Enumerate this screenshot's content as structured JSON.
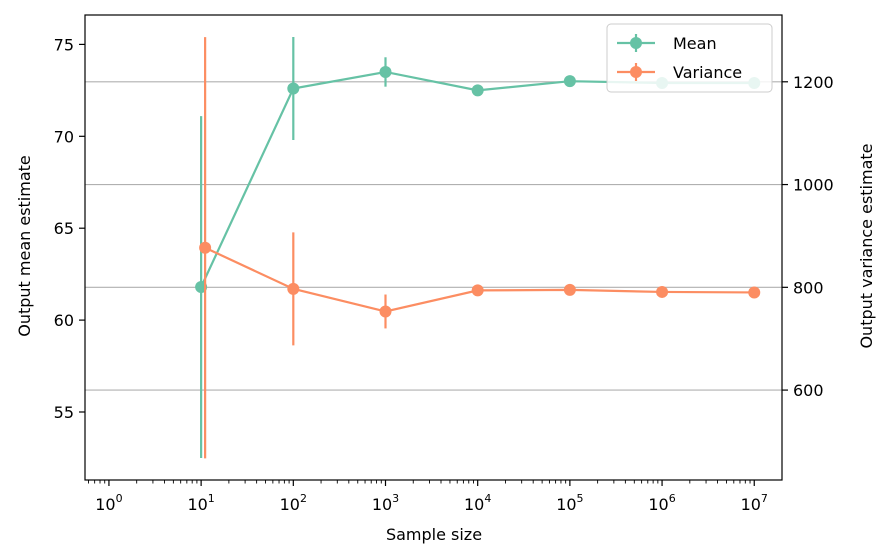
{
  "chart_data": {
    "type": "line",
    "xlabel": "Sample size",
    "ylabel_left": "Output mean estimate",
    "ylabel_right": "Output variance estimate",
    "x_scale": "log",
    "xlim": [
      0.55,
      20000000
    ],
    "ylim_left": [
      51.3,
      76.6
    ],
    "ylim_right": [
      425,
      1330
    ],
    "x_ticks": [
      {
        "value": 1,
        "base": "10",
        "exp": "0"
      },
      {
        "value": 10,
        "base": "10",
        "exp": "1"
      },
      {
        "value": 100,
        "base": "10",
        "exp": "2"
      },
      {
        "value": 1000,
        "base": "10",
        "exp": "3"
      },
      {
        "value": 10000,
        "base": "10",
        "exp": "4"
      },
      {
        "value": 100000,
        "base": "10",
        "exp": "5"
      },
      {
        "value": 1000000,
        "base": "10",
        "exp": "6"
      },
      {
        "value": 10000000,
        "base": "10",
        "exp": "7"
      }
    ],
    "y_left_ticks": [
      "55",
      "60",
      "65",
      "70",
      "75"
    ],
    "y_right_ticks": [
      "600",
      "800",
      "1000",
      "1200"
    ],
    "grid": "horizontal lines at right-axis ticks",
    "legend_position": "top-right",
    "series": [
      {
        "name": "Mean",
        "axis": "left",
        "color": "#66c2a5",
        "x": [
          10,
          100,
          1000,
          10000,
          100000,
          1000000,
          10000000
        ],
        "y": [
          61.8,
          72.6,
          73.5,
          72.5,
          73.0,
          72.9,
          72.9
        ],
        "err": [
          9.3,
          2.8,
          0.8,
          0.15,
          0.1,
          0.05,
          0.03
        ]
      },
      {
        "name": "Variance",
        "axis": "right",
        "color": "#fc8d62",
        "x": [
          10,
          100,
          1000,
          10000,
          100000,
          1000000,
          10000000
        ],
        "y": [
          877,
          797,
          753,
          794,
          795,
          791,
          790
        ],
        "err": [
          410,
          110,
          33,
          5,
          4,
          3,
          2
        ]
      }
    ]
  }
}
